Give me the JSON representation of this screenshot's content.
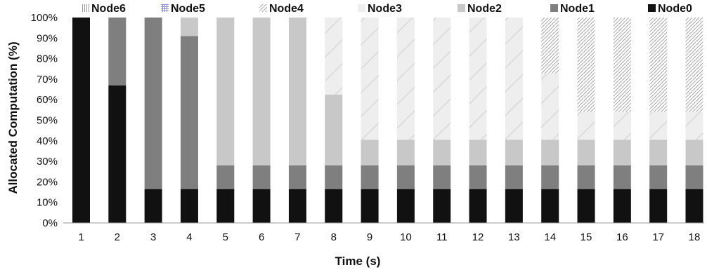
{
  "chart_data": {
    "type": "bar",
    "stacked": true,
    "categories": [
      "1",
      "2",
      "3",
      "4",
      "5",
      "6",
      "7",
      "8",
      "9",
      "10",
      "11",
      "12",
      "13",
      "14",
      "15",
      "16",
      "17",
      "18"
    ],
    "xlabel": "Time (s)",
    "ylabel": "Allocated Computation (%)",
    "ylim": [
      0,
      100
    ],
    "yticks": [
      "0%",
      "10%",
      "20%",
      "30%",
      "40%",
      "50%",
      "60%",
      "70%",
      "80%",
      "90%",
      "100%"
    ],
    "legend_position": "top",
    "legend_order": [
      "Node6",
      "Node5",
      "Node4",
      "Node3",
      "Node2",
      "Node1",
      "Node0"
    ],
    "series": [
      {
        "name": "Node0",
        "color": "#111111",
        "pattern": "solid",
        "values": [
          100,
          67,
          16.5,
          16.5,
          16.5,
          16.5,
          16.5,
          16.5,
          16.5,
          16.5,
          16.5,
          16.5,
          16.5,
          16.5,
          16.5,
          16.5,
          16.5,
          16.5
        ]
      },
      {
        "name": "Node1",
        "color": "#7f7f7f",
        "pattern": "solid",
        "values": [
          0,
          33,
          83.5,
          74.5,
          11.5,
          11.5,
          11.5,
          11.5,
          11.5,
          11.5,
          11.5,
          11.5,
          11.5,
          11.5,
          11.5,
          11.5,
          11.5,
          11.5
        ]
      },
      {
        "name": "Node2",
        "color": "#c8c8c8",
        "pattern": "solid",
        "values": [
          0,
          0,
          0,
          9,
          72,
          72,
          72,
          34.5,
          12.5,
          12.5,
          12.5,
          12.5,
          12.5,
          12.5,
          12.5,
          12.5,
          12.5,
          12.5
        ]
      },
      {
        "name": "Node3",
        "color": "#eeeeee",
        "pattern": "diagonal-thin",
        "values": [
          0,
          0,
          0,
          0,
          0,
          0,
          0,
          37.5,
          59.5,
          59.5,
          59.5,
          59.5,
          59.5,
          32,
          13.5,
          13.5,
          13.5,
          13.5
        ]
      },
      {
        "name": "Node4",
        "color": "#cfcfcf",
        "pattern": "diagonal-dense",
        "values": [
          0,
          0,
          0,
          0,
          0,
          0,
          0,
          0,
          0,
          0,
          0,
          0,
          0,
          27.5,
          46,
          46,
          46,
          46
        ]
      },
      {
        "name": "Node5",
        "color": "#b0b0dd",
        "pattern": "grid",
        "values": [
          0,
          0,
          0,
          0,
          0,
          0,
          0,
          0,
          0,
          0,
          0,
          0,
          0,
          0,
          0,
          0,
          0,
          0
        ]
      },
      {
        "name": "Node6",
        "color": "#bdbdbd",
        "pattern": "vertical",
        "values": [
          0,
          0,
          0,
          0,
          0,
          0,
          0,
          0,
          0,
          0,
          0,
          0,
          0,
          0,
          0,
          0,
          0,
          0
        ]
      }
    ]
  }
}
